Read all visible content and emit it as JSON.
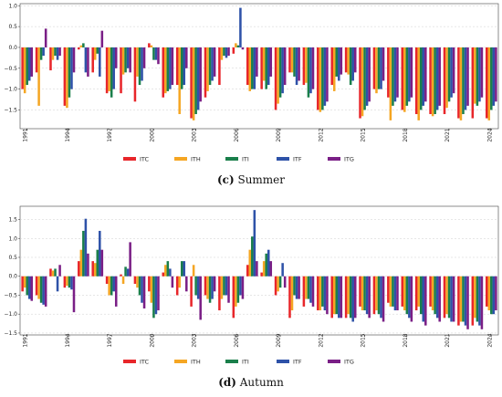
{
  "chart_data": [
    {
      "type": "bar",
      "caption_tag": "(c)",
      "caption_text": "Summer",
      "ylim": [
        -1.95,
        1.05
      ],
      "yticks": [
        1.0,
        0.5,
        0.0,
        -0.5,
        -1.0,
        -1.5
      ],
      "ytick_labels": [
        "1.0",
        "0.5",
        "0.0",
        "−0.5",
        "−1.0",
        "−1.5"
      ],
      "grid": true,
      "legend_position": "bottom-center",
      "x": [
        1991,
        1992,
        1993,
        1994,
        1995,
        1996,
        1997,
        1998,
        1999,
        2000,
        2001,
        2002,
        2003,
        2004,
        2005,
        2006,
        2007,
        2008,
        2009,
        2010,
        2011,
        2012,
        2013,
        2014,
        2015,
        2016,
        2017,
        2018,
        2019,
        2020,
        2021,
        2022,
        2023,
        2024
      ],
      "xtick_labels": [
        "1991",
        "1994",
        "1997",
        "2000",
        "2003",
        "2006",
        "2009",
        "2012",
        "2015",
        "2018",
        "2021",
        "2024"
      ],
      "series": [
        {
          "name": "ITC",
          "color": "#e8262a",
          "values": [
            -1.0,
            -0.6,
            -0.55,
            -1.4,
            -0.05,
            -0.6,
            -1.1,
            -1.1,
            -1.3,
            0.1,
            -1.2,
            -0.9,
            -1.7,
            -1.2,
            -0.9,
            -0.15,
            -0.9,
            -1.0,
            -1.5,
            -0.6,
            -0.9,
            -1.5,
            -0.9,
            -0.6,
            -1.7,
            -1.0,
            -1.2,
            -1.5,
            -1.6,
            -1.6,
            -1.6,
            -1.7,
            -1.7,
            -1.7
          ]
        },
        {
          "name": "ITH",
          "color": "#f5a623",
          "values": [
            -1.1,
            -1.4,
            -0.3,
            -1.45,
            0.05,
            -0.3,
            -1.05,
            -0.65,
            -0.7,
            0.05,
            -1.1,
            -1.6,
            -1.75,
            -1.05,
            -0.3,
            0.1,
            -1.05,
            -0.8,
            -1.35,
            -0.6,
            -0.85,
            -1.55,
            -1.05,
            -0.65,
            -1.65,
            -1.1,
            -1.75,
            -1.55,
            -1.75,
            -1.65,
            -1.45,
            -1.75,
            -1.35,
            -1.75
          ]
        },
        {
          "name": "ITI",
          "color": "#1a7f4b",
          "values": [
            -0.9,
            -0.3,
            -0.2,
            -1.2,
            0.1,
            -0.15,
            -1.2,
            -0.6,
            -0.9,
            -0.3,
            -1.05,
            -1.0,
            -1.6,
            -0.9,
            -0.2,
            0.05,
            -1.0,
            -1.0,
            -1.2,
            -0.7,
            -1.2,
            -1.5,
            -0.7,
            -0.9,
            -1.5,
            -1.0,
            -1.4,
            -1.4,
            -1.5,
            -1.6,
            -1.3,
            -1.6,
            -1.4,
            -1.5
          ]
        },
        {
          "name": "ITF",
          "color": "#2e52a8",
          "values": [
            -0.8,
            -0.2,
            -0.3,
            -1.0,
            -0.6,
            -0.7,
            -1.0,
            -0.5,
            -0.8,
            -0.3,
            -1.0,
            -0.9,
            -1.5,
            -0.8,
            -0.25,
            0.95,
            -1.0,
            -0.9,
            -1.1,
            -0.9,
            -1.1,
            -1.4,
            -0.8,
            -0.8,
            -1.4,
            -1.0,
            -1.3,
            -1.3,
            -1.4,
            -1.5,
            -1.2,
            -1.5,
            -1.3,
            -1.4
          ]
        },
        {
          "name": "ITG",
          "color": "#7a1f86",
          "values": [
            -0.7,
            0.45,
            -0.2,
            -0.6,
            -0.7,
            0.4,
            -0.5,
            -0.6,
            -0.5,
            -0.4,
            -0.9,
            -0.5,
            -1.3,
            -0.7,
            -0.2,
            -0.05,
            -0.7,
            -0.7,
            -0.9,
            -0.8,
            -1.0,
            -1.3,
            -0.65,
            -0.6,
            -1.3,
            -0.8,
            -1.2,
            -1.2,
            -1.3,
            -1.4,
            -1.1,
            -1.4,
            -1.2,
            -1.3
          ]
        }
      ]
    },
    {
      "type": "bar",
      "caption_tag": "(d)",
      "caption_text": "Autumn",
      "ylim": [
        -1.55,
        1.85
      ],
      "yticks": [
        1.5,
        1.0,
        0.5,
        0.0,
        -0.5,
        -1.0,
        -1.5
      ],
      "ytick_labels": [
        "1.5",
        "1.0",
        "0.5",
        "0.0",
        "−0.5",
        "−1.0",
        "−1.5"
      ],
      "grid": true,
      "legend_position": "bottom-center",
      "x": [
        1991,
        1992,
        1993,
        1994,
        1995,
        1996,
        1997,
        1998,
        1999,
        2000,
        2001,
        2002,
        2003,
        2004,
        2005,
        2006,
        2007,
        2008,
        2009,
        2010,
        2011,
        2012,
        2013,
        2014,
        2015,
        2016,
        2017,
        2018,
        2019,
        2020,
        2021,
        2022,
        2023,
        2024
      ],
      "xtick_labels": [
        "1991",
        "1994",
        "1997",
        "2000",
        "2003",
        "2006",
        "2009",
        "2012",
        "2015",
        "2018",
        "2021",
        "2024"
      ],
      "series": [
        {
          "name": "ITC",
          "color": "#e8262a",
          "values": [
            -0.4,
            -0.5,
            0.2,
            -0.3,
            0.4,
            0.4,
            -0.2,
            0.05,
            -0.2,
            -0.4,
            0.1,
            -0.5,
            -0.8,
            -0.5,
            -0.9,
            -1.1,
            0.3,
            0.1,
            -0.5,
            -1.1,
            -0.8,
            -0.9,
            -1.1,
            -1.1,
            -0.8,
            -1.0,
            -0.7,
            -0.8,
            -0.9,
            -0.8,
            -1.1,
            -1.3,
            -1.3,
            -0.8
          ]
        },
        {
          "name": "ITH",
          "color": "#f5a623",
          "values": [
            -0.3,
            -0.6,
            0.15,
            -0.25,
            0.7,
            0.35,
            -0.5,
            -0.2,
            -0.3,
            -0.7,
            0.3,
            -0.3,
            0.3,
            -0.6,
            -0.6,
            -0.8,
            0.7,
            0.4,
            -0.4,
            -0.9,
            -0.6,
            -0.9,
            -1.0,
            -1.0,
            -0.9,
            -0.9,
            -0.8,
            -0.9,
            -0.8,
            -0.9,
            -1.0,
            -1.2,
            -1.1,
            -0.9
          ]
        },
        {
          "name": "ITI",
          "color": "#1a7f4b",
          "values": [
            -0.5,
            -0.7,
            0.2,
            -0.3,
            1.2,
            0.7,
            -0.5,
            0.25,
            -0.5,
            -1.1,
            0.4,
            0.4,
            -0.5,
            -0.7,
            -0.5,
            -0.7,
            1.05,
            0.6,
            -0.3,
            -0.5,
            -0.6,
            -0.8,
            -1.0,
            -1.1,
            -0.9,
            -1.0,
            -0.8,
            -1.0,
            -1.0,
            -1.0,
            -1.1,
            -1.2,
            -1.2,
            -1.0
          ]
        },
        {
          "name": "ITF",
          "color": "#2e52a8",
          "values": [
            -0.6,
            -0.75,
            -0.4,
            -0.35,
            1.52,
            1.2,
            -0.4,
            0.2,
            -0.7,
            -1.0,
            0.2,
            0.4,
            -0.6,
            -0.6,
            -0.5,
            -0.5,
            1.75,
            0.7,
            0.35,
            -0.6,
            -0.7,
            -0.9,
            -1.1,
            -1.2,
            -1.0,
            -1.1,
            -0.9,
            -1.1,
            -1.2,
            -1.1,
            -1.2,
            -1.3,
            -1.3,
            -1.0
          ]
        },
        {
          "name": "ITG",
          "color": "#7a1f86",
          "values": [
            -0.65,
            -0.8,
            0.3,
            -0.95,
            0.6,
            0.7,
            -0.8,
            0.9,
            -0.85,
            -0.9,
            -0.3,
            -0.4,
            -1.15,
            -0.4,
            -0.7,
            -0.6,
            0.4,
            0.4,
            -0.3,
            -0.6,
            -0.8,
            -1.0,
            -1.1,
            -1.1,
            -1.1,
            -1.2,
            -0.9,
            -1.2,
            -1.3,
            -1.2,
            -1.2,
            -1.4,
            -1.4,
            -0.9
          ]
        }
      ]
    }
  ]
}
